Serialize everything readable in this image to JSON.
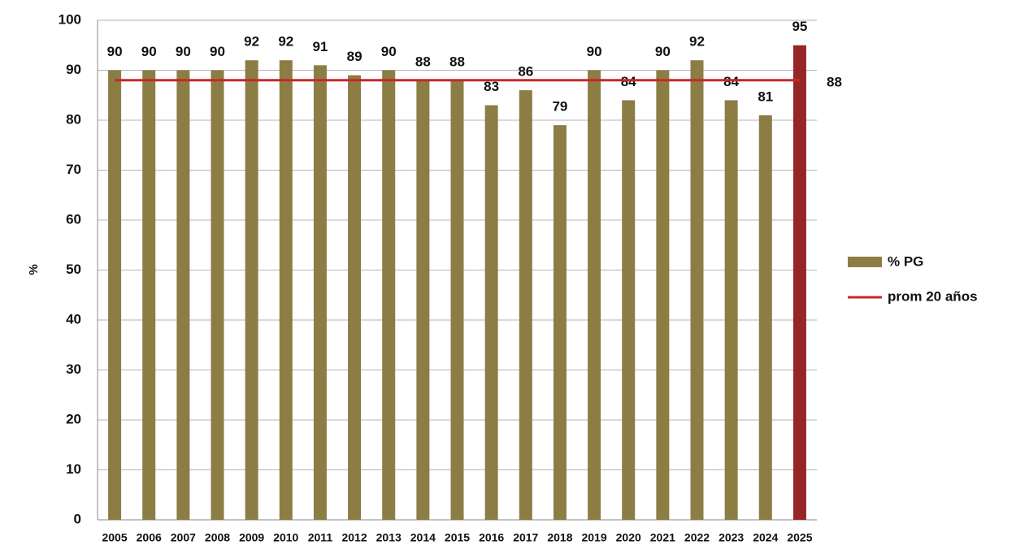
{
  "chart_data": {
    "type": "bar",
    "ylabel": "%",
    "categories": [
      "2005",
      "2006",
      "2007",
      "2008",
      "2009",
      "2010",
      "2011",
      "2012",
      "2013",
      "2014",
      "2015",
      "2016",
      "2017",
      "2018",
      "2019",
      "2020",
      "2021",
      "2022",
      "2023",
      "2024",
      "2025"
    ],
    "series": [
      {
        "name": "% PG",
        "color": "#8c7d45",
        "colors": [
          "#8c7d45",
          "#8c7d45",
          "#8c7d45",
          "#8c7d45",
          "#8c7d45",
          "#8c7d45",
          "#8c7d45",
          "#8c7d45",
          "#8c7d45",
          "#8c7d45",
          "#8c7d45",
          "#8c7d45",
          "#8c7d45",
          "#8c7d45",
          "#8c7d45",
          "#8c7d45",
          "#8c7d45",
          "#8c7d45",
          "#8c7d45",
          "#8c7d45",
          "#962626"
        ],
        "values": [
          90,
          90,
          90,
          90,
          92,
          92,
          91,
          89,
          90,
          88,
          88,
          83,
          86,
          79,
          90,
          84,
          90,
          92,
          84,
          81,
          95
        ]
      }
    ],
    "reference_line": {
      "name": "prom 20 años",
      "color": "#c62828",
      "value": 88
    },
    "ylim": [
      0,
      100
    ],
    "yticks": [
      0,
      10,
      20,
      30,
      40,
      50,
      60,
      70,
      80,
      90,
      100
    ],
    "grid": true
  }
}
